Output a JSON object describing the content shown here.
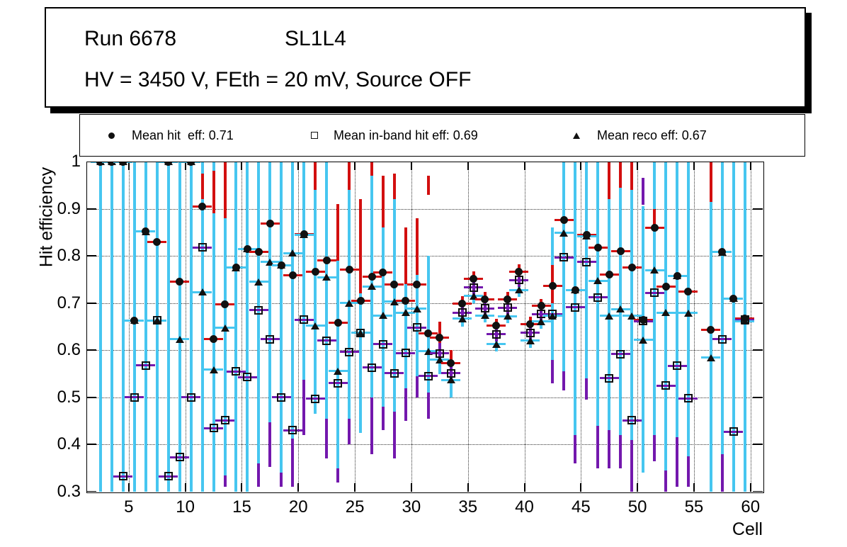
{
  "title": {
    "run": "Run 6678",
    "layer": "SL1L4",
    "conditions": "HV = 3450 V, FEth = 20 mV, Source OFF"
  },
  "legend": {
    "items": [
      {
        "marker": "filled-circle-icon",
        "label": "Mean hit  eff: 0.71"
      },
      {
        "marker": "open-square-icon",
        "label": "Mean in-band hit eff: 0.69"
      },
      {
        "marker": "filled-triangle-icon",
        "label": "Mean reco eff: 0.67"
      }
    ]
  },
  "axes": {
    "y_label": "Hit efficiency",
    "x_label": "Cell",
    "y_ticks": [
      "1",
      "0.9",
      "0.8",
      "0.7",
      "0.6",
      "0.5",
      "0.4",
      "0.3"
    ],
    "x_ticks": [
      5,
      10,
      15,
      20,
      25,
      30,
      35,
      40,
      45,
      50,
      55,
      60
    ],
    "y_range": [
      0.3,
      1.0
    ],
    "x_range": [
      1.25,
      61.08
    ]
  },
  "colors": {
    "hit_err_red": "#d20f0f",
    "inband_err_purple": "#7318ad",
    "reco_err_cyan": "#46c6f0",
    "marker_black": "#111111"
  },
  "chart_data": {
    "type": "scatter",
    "title": "Run 6678 SL1L4 — HV = 3450 V, FEth = 20 mV, Source OFF",
    "xlabel": "Cell",
    "ylabel": "Hit efficiency",
    "xlim": [
      1.25,
      61.08
    ],
    "ylim": [
      0.3,
      1.0
    ],
    "grid": "dotted-major",
    "legend_position": "top",
    "series_names": [
      "Mean hit eff (filled circle, red errors): 0.71",
      "Mean in-band hit eff (open square, purple errors): 0.69",
      "Mean reco eff (filled triangle, cyan errors): 0.67"
    ],
    "point_format": [
      "cell",
      "hit_eff",
      "inband_eff",
      "reco_eff",
      "err_hit_red[lo,hi]",
      "err_reco_cyan[lo,hi]",
      "err_inband_purple[lo,hi]"
    ],
    "points": [
      [
        3,
        1.0,
        null,
        1.0,
        null,
        [
          0.3,
          1.0
        ],
        null
      ],
      [
        4,
        1.0,
        null,
        1.0,
        null,
        [
          0.3,
          1.0
        ],
        null
      ],
      [
        5,
        1.0,
        0.333,
        1.0,
        null,
        [
          0.3,
          1.0
        ],
        null
      ],
      [
        6,
        0.663,
        0.5,
        0.663,
        null,
        [
          0.3,
          1.0
        ],
        null
      ],
      [
        7,
        0.852,
        0.568,
        0.852,
        null,
        [
          0.3,
          1.0
        ],
        null
      ],
      [
        8,
        0.83,
        0.663,
        0.663,
        null,
        [
          0.3,
          1.0
        ],
        null
      ],
      [
        9,
        1.0,
        0.333,
        1.0,
        null,
        [
          0.3,
          1.0
        ],
        null
      ],
      [
        10,
        0.746,
        0.373,
        0.623,
        null,
        [
          0.3,
          1.0
        ],
        null
      ],
      [
        11,
        1.0,
        0.5,
        1.0,
        null,
        [
          0.3,
          1.0
        ],
        null
      ],
      [
        12,
        0.905,
        0.818,
        0.723,
        [
          0.92,
          0.975
        ],
        [
          0.3,
          1.0
        ],
        null
      ],
      [
        13,
        0.623,
        0.435,
        0.559,
        [
          0.89,
          0.98
        ],
        [
          0.3,
          1.0
        ],
        null
      ],
      [
        14,
        0.697,
        0.451,
        0.647,
        [
          0.88,
          1.0
        ],
        [
          0.335,
          1.0
        ],
        [
          0.31,
          0.335
        ]
      ],
      [
        15,
        0.775,
        0.555,
        0.775,
        null,
        [
          0.3,
          1.0
        ],
        null
      ],
      [
        16,
        0.815,
        0.543,
        0.815,
        null,
        [
          0.3,
          1.0
        ],
        null
      ],
      [
        17,
        0.809,
        0.685,
        0.745,
        null,
        [
          0.36,
          1.0
        ],
        [
          0.31,
          0.36
        ]
      ],
      [
        18,
        0.868,
        0.623,
        0.787,
        null,
        [
          0.447,
          1.0
        ],
        [
          0.352,
          0.447
        ]
      ],
      [
        19,
        0.78,
        0.5,
        0.78,
        null,
        [
          0.34,
          1.0
        ],
        [
          0.31,
          0.34
        ]
      ],
      [
        20,
        0.759,
        0.43,
        0.806,
        null,
        [
          0.412,
          1.0
        ],
        [
          0.31,
          0.412
        ]
      ],
      [
        21,
        0.846,
        0.665,
        0.845,
        null,
        [
          0.538,
          1.0
        ],
        [
          0.42,
          0.538
        ]
      ],
      [
        22,
        0.766,
        0.497,
        0.652,
        [
          0.94,
          1.0
        ],
        [
          0.465,
          0.94
        ],
        null
      ],
      [
        23,
        0.79,
        0.62,
        0.755,
        null,
        [
          0.455,
          1.0
        ],
        [
          0.37,
          0.455
        ]
      ],
      [
        24,
        0.658,
        0.53,
        0.556,
        [
          0.79,
          0.91
        ],
        [
          0.35,
          0.79
        ],
        [
          0.32,
          0.35
        ]
      ],
      [
        25,
        0.771,
        0.596,
        0.7,
        [
          0.94,
          1.0
        ],
        [
          0.455,
          0.94
        ],
        [
          0.4,
          0.455
        ]
      ],
      [
        26,
        0.705,
        0.637,
        0.637,
        [
          0.72,
          0.92
        ],
        [
          0.425,
          0.92
        ],
        null
      ],
      [
        27,
        0.756,
        0.563,
        0.735,
        [
          0.97,
          1.0
        ],
        [
          0.5,
          0.97
        ],
        [
          0.38,
          0.5
        ]
      ],
      [
        28,
        0.765,
        0.613,
        0.674,
        [
          0.86,
          0.97
        ],
        [
          0.48,
          0.86
        ],
        [
          0.43,
          0.48
        ]
      ],
      [
        29,
        0.74,
        0.551,
        0.703,
        [
          0.92,
          0.975
        ],
        [
          0.47,
          0.92
        ],
        [
          0.37,
          0.47
        ]
      ],
      [
        30,
        0.705,
        0.594,
        0.68,
        [
          0.74,
          0.86
        ],
        [
          0.52,
          0.86
        ],
        [
          0.45,
          0.52
        ]
      ],
      [
        31,
        0.74,
        0.648,
        0.688,
        [
          0.76,
          0.88
        ],
        [
          0.53,
          0.88
        ],
        [
          0.5,
          0.545
        ]
      ],
      [
        32,
        0.635,
        0.545,
        0.598,
        [
          0.93,
          0.97
        ],
        [
          0.51,
          0.8
        ],
        [
          0.455,
          0.51
        ]
      ],
      [
        33,
        0.627,
        0.593,
        0.58,
        [
          0.61,
          0.66
        ],
        [
          0.55,
          0.61
        ],
        [
          0.575,
          0.615
        ]
      ],
      [
        34,
        0.572,
        0.551,
        0.537,
        [
          0.545,
          0.6
        ],
        [
          0.5,
          0.565
        ],
        [
          0.53,
          0.57
        ]
      ],
      [
        35,
        0.699,
        0.68,
        0.667,
        [
          0.684,
          0.714
        ],
        [
          0.65,
          0.684
        ],
        [
          0.665,
          0.695
        ]
      ],
      [
        36,
        0.752,
        0.733,
        0.715,
        [
          0.737,
          0.767
        ],
        [
          0.7,
          0.73
        ],
        [
          0.718,
          0.748
        ]
      ],
      [
        37,
        0.708,
        0.689,
        0.674,
        [
          0.693,
          0.723
        ],
        [
          0.659,
          0.689
        ],
        [
          0.674,
          0.704
        ]
      ],
      [
        38,
        0.652,
        0.634,
        0.613,
        [
          0.637,
          0.667
        ],
        [
          0.598,
          0.628
        ],
        [
          0.619,
          0.649
        ]
      ],
      [
        39,
        0.708,
        0.69,
        0.672,
        [
          0.693,
          0.723
        ],
        [
          0.657,
          0.687
        ],
        [
          0.675,
          0.705
        ]
      ],
      [
        40,
        0.767,
        0.749,
        0.728,
        [
          0.752,
          0.782
        ],
        [
          0.713,
          0.743
        ],
        [
          0.734,
          0.764
        ]
      ],
      [
        41,
        0.656,
        0.637,
        0.62,
        [
          0.641,
          0.671
        ],
        [
          0.605,
          0.635
        ],
        [
          0.622,
          0.652
        ]
      ],
      [
        42,
        0.694,
        0.677,
        0.661,
        [
          0.679,
          0.709
        ],
        [
          0.646,
          0.676
        ],
        [
          0.662,
          0.692
        ]
      ],
      [
        43,
        0.737,
        0.677,
        0.673,
        [
          0.7,
          0.78
        ],
        [
          0.58,
          0.86
        ],
        [
          0.53,
          0.58
        ]
      ],
      [
        44,
        0.876,
        0.797,
        0.849,
        null,
        [
          0.555,
          1.0
        ],
        [
          0.515,
          0.555
        ]
      ],
      [
        45,
        0.728,
        0.691,
        0.728,
        null,
        [
          0.42,
          1.0
        ],
        [
          0.36,
          0.42
        ]
      ],
      [
        46,
        0.845,
        0.787,
        0.842,
        null,
        [
          0.54,
          1.0
        ],
        [
          0.495,
          0.54
        ]
      ],
      [
        47,
        0.817,
        0.712,
        0.747,
        null,
        [
          0.44,
          1.0
        ],
        [
          0.35,
          0.44
        ]
      ],
      [
        48,
        0.76,
        0.541,
        0.673,
        [
          0.92,
          1.0
        ],
        [
          0.43,
          0.92
        ],
        [
          0.35,
          0.43
        ]
      ],
      [
        49,
        0.81,
        0.592,
        0.687,
        [
          0.945,
          1.0
        ],
        [
          0.42,
          0.945
        ],
        [
          0.35,
          0.42
        ]
      ],
      [
        50,
        0.776,
        0.451,
        0.673,
        [
          0.94,
          1.0
        ],
        [
          0.41,
          0.94
        ],
        [
          0.3,
          0.41
        ]
      ],
      [
        51,
        0.665,
        0.662,
        0.622,
        null,
        [
          0.34,
          0.905
        ],
        [
          0.909,
          0.965
        ]
      ],
      [
        52,
        0.86,
        0.722,
        0.77,
        [
          0.865,
          0.9
        ],
        [
          0.42,
          1.0
        ],
        [
          0.365,
          0.42
        ]
      ],
      [
        53,
        0.735,
        0.525,
        0.68,
        null,
        [
          0.345,
          1.0
        ],
        [
          0.3,
          0.345
        ]
      ],
      [
        54,
        0.758,
        0.567,
        0.758,
        null,
        [
          0.415,
          1.0
        ],
        [
          0.31,
          0.415
        ]
      ],
      [
        55,
        0.724,
        0.498,
        0.679,
        null,
        [
          0.375,
          1.0
        ],
        [
          0.31,
          0.375
        ]
      ],
      [
        57,
        0.643,
        null,
        0.584,
        [
          0.915,
          1.0
        ],
        [
          0.3,
          0.915
        ],
        null
      ],
      [
        58,
        0.808,
        0.623,
        0.808,
        null,
        [
          0.38,
          1.0
        ],
        [
          0.3,
          0.38
        ]
      ],
      [
        59,
        0.71,
        0.427,
        0.71,
        null,
        [
          0.3,
          1.0
        ],
        null
      ],
      [
        60,
        0.667,
        0.665,
        0.662,
        null,
        [
          0.3,
          1.0
        ],
        null
      ]
    ]
  }
}
